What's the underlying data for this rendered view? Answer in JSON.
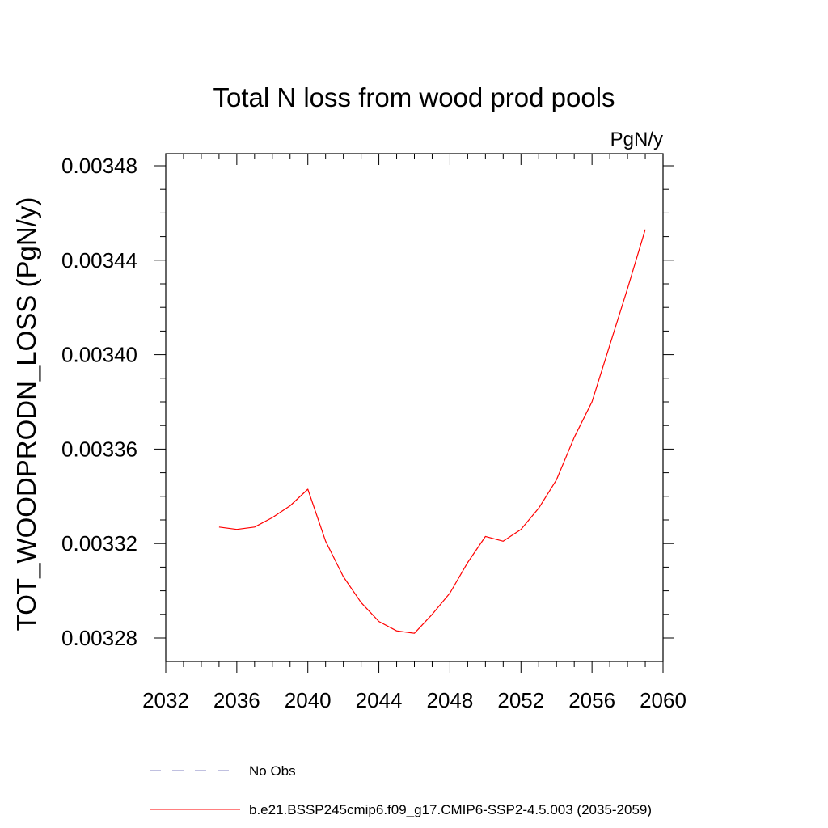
{
  "chart_data": {
    "type": "line",
    "title": "Total N loss from wood prod pools",
    "units_label": "PgN/y",
    "ylabel": "TOT_WOODPRODN_LOSS  (PgN/y)",
    "xlabel": "",
    "xlim": [
      2032,
      2060
    ],
    "ylim": [
      0.00327,
      0.00349
    ],
    "x_ticks": [
      2032,
      2036,
      2040,
      2044,
      2048,
      2052,
      2056,
      2060
    ],
    "x_tick_labels": [
      "2032",
      "2036",
      "2040",
      "2044",
      "2048",
      "2052",
      "2056",
      "2060"
    ],
    "y_ticks": [
      0.00328,
      0.00332,
      0.00336,
      0.0034,
      0.00344,
      0.00348
    ],
    "y_tick_labels": [
      "0.00328",
      "0.00332",
      "0.00336",
      "0.00340",
      "0.00344",
      "0.00348"
    ],
    "grid": false,
    "legend_position": "bottom",
    "series": [
      {
        "name": "b.e21.BSSP245cmip6.f09_g17.CMIP6-SSP2-4.5.003 (2035-2059)",
        "color": "#ff0000",
        "style": "solid",
        "x": [
          2035,
          2036,
          2037,
          2038,
          2039,
          2040,
          2041,
          2042,
          2043,
          2044,
          2045,
          2046,
          2047,
          2048,
          2049,
          2050,
          2051,
          2052,
          2053,
          2054,
          2055,
          2056,
          2057,
          2058,
          2059
        ],
        "y": [
          0.003327,
          0.003326,
          0.003327,
          0.003331,
          0.003336,
          0.003343,
          0.003321,
          0.003306,
          0.003295,
          0.003287,
          0.003283,
          0.003282,
          0.00329,
          0.003299,
          0.003312,
          0.003323,
          0.003321,
          0.003326,
          0.003335,
          0.003347,
          0.003365,
          0.00338,
          0.003404,
          0.003428,
          0.003453
        ]
      }
    ],
    "legend": [
      {
        "label": "No Obs",
        "color": "#8080c0",
        "style": "dashed"
      },
      {
        "label": "b.e21.BSSP245cmip6.f09_g17.CMIP6-SSP2-4.5.003 (2035-2059)",
        "color": "#ff0000",
        "style": "solid"
      }
    ]
  }
}
